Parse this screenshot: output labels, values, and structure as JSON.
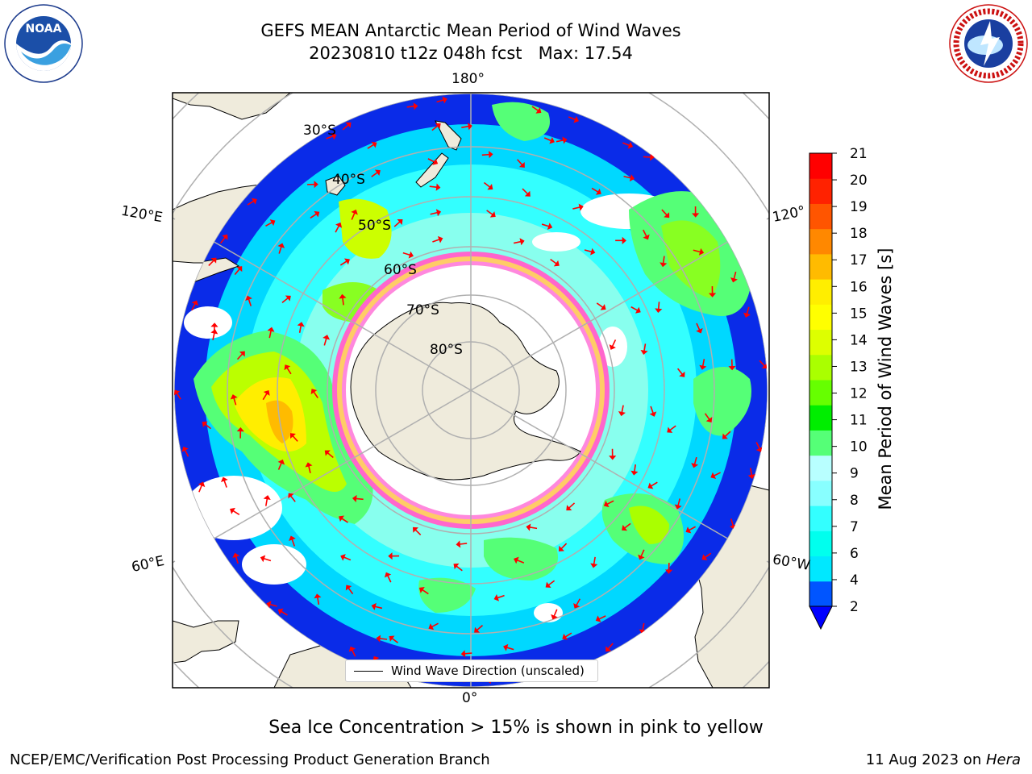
{
  "header": {
    "title_line1": "GEFS MEAN Antarctic Mean Period of Wind Waves",
    "title_line2": "20230810 t12z 048h fcst   Max: 17.54"
  },
  "logos": {
    "noaa": "NOAA",
    "nws_ring_text": "NATIONAL WEATHER SERVICE",
    "noaa_ring_text": "NATIONAL OCEANIC AND ATMOSPHERIC ADMINISTRATION · U.S. DEPARTMENT OF COMMERCE"
  },
  "map": {
    "projection": "south-polar-stereographic",
    "lon_labels": {
      "top": "180°",
      "bottom": "0°",
      "left_upper": "120°E",
      "left_lower": "60°E",
      "right_upper": "120°",
      "right_lower": "60°W"
    },
    "lat_labels": [
      "30°S",
      "40°S",
      "50°S",
      "60°S",
      "70°S",
      "80°S"
    ],
    "legend_label": "Wind Wave Direction (unscaled)",
    "arrow_color": "#ff0000",
    "land_color": "#efebdc",
    "sea_ice_colors": [
      "#ff66cc",
      "#ffaa33",
      "#ffee55"
    ]
  },
  "colorbar": {
    "label": "Mean Period of Wind Waves [s]",
    "ticks": [
      "2",
      "4",
      "6",
      "7",
      "8",
      "9",
      "10",
      "11",
      "12",
      "13",
      "14",
      "15",
      "16",
      "17",
      "18",
      "19",
      "20",
      "21"
    ],
    "colors": [
      "#0055ff",
      "#00e8ff",
      "#00ffee",
      "#33ffff",
      "#88ffff",
      "#b8ffff",
      "#55ff77",
      "#00ee00",
      "#66ff00",
      "#aaff00",
      "#ddff00",
      "#ffff00",
      "#ffee00",
      "#ffbb00",
      "#ff8800",
      "#ff5500",
      "#ff2200",
      "#ff0000"
    ],
    "extend_color": "#0000ff"
  },
  "footer": {
    "subtitle": "Sea Ice Concentration > 15% is shown in pink to yellow",
    "left": "NCEP/EMC/Verification Post Processing Product Generation Branch",
    "date": "11 Aug 2023 on ",
    "machine": "Hera"
  }
}
